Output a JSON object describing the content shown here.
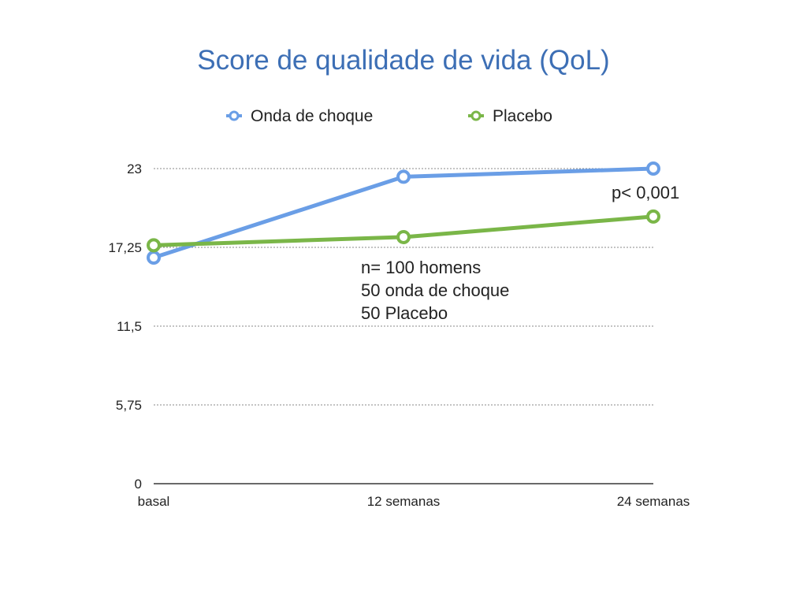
{
  "chart_data": {
    "type": "line",
    "title": "Score de qualidade de vida (QoL)",
    "xlabel": "",
    "ylabel": "",
    "categories": [
      "basal",
      "12 semanas",
      "24 semanas"
    ],
    "ylim": [
      0,
      23
    ],
    "yticks": [
      "0",
      "5,75",
      "11,5",
      "17,25",
      "23"
    ],
    "ytick_values": [
      0,
      5.75,
      11.5,
      17.25,
      23
    ],
    "grid": true,
    "legend_position": "top",
    "series": [
      {
        "name": "Onda de choque",
        "color": "#6a9ee6",
        "values": [
          16.5,
          22.4,
          23.0
        ]
      },
      {
        "name": "Placebo",
        "color": "#7ab648",
        "values": [
          17.4,
          18.0,
          19.5
        ]
      }
    ],
    "annotations": {
      "pvalue": "p< 0,001",
      "sample_lines": [
        "n= 100 homens",
        "50 onda de choque",
        "50 Placebo"
      ]
    }
  }
}
